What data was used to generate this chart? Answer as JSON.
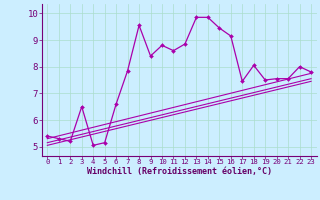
{
  "title": "",
  "xlabel": "Windchill (Refroidissement éolien,°C)",
  "background_color": "#cceeff",
  "line_color": "#aa00aa",
  "x_ticks": [
    0,
    1,
    2,
    3,
    4,
    5,
    6,
    7,
    8,
    9,
    10,
    11,
    12,
    13,
    14,
    15,
    16,
    17,
    18,
    19,
    20,
    21,
    22,
    23
  ],
  "y_ticks": [
    5,
    6,
    7,
    8,
    9,
    10
  ],
  "ylim": [
    4.65,
    10.35
  ],
  "xlim": [
    -0.5,
    23.5
  ],
  "series1_x": [
    0,
    1,
    2,
    3,
    4,
    5,
    6,
    7,
    8,
    9,
    10,
    11,
    12,
    13,
    14,
    15,
    16,
    17,
    18,
    19,
    20,
    21,
    22,
    23
  ],
  "series1_y": [
    5.4,
    5.3,
    5.2,
    6.5,
    5.05,
    5.15,
    6.6,
    7.85,
    9.55,
    8.4,
    8.8,
    8.6,
    8.85,
    9.85,
    9.85,
    9.45,
    9.15,
    7.45,
    8.05,
    7.5,
    7.55,
    7.55,
    8.0,
    7.8
  ],
  "series2_x": [
    0,
    23
  ],
  "series2_y": [
    5.3,
    7.75
  ],
  "series3_x": [
    0,
    23
  ],
  "series3_y": [
    5.15,
    7.55
  ],
  "series4_x": [
    0,
    23
  ],
  "series4_y": [
    5.05,
    7.45
  ],
  "grid_color": "#aaddcc",
  "tick_color": "#770077",
  "label_color": "#660066",
  "xlabel_size": 6.0,
  "ytick_size": 6.5,
  "xtick_size": 5.2
}
